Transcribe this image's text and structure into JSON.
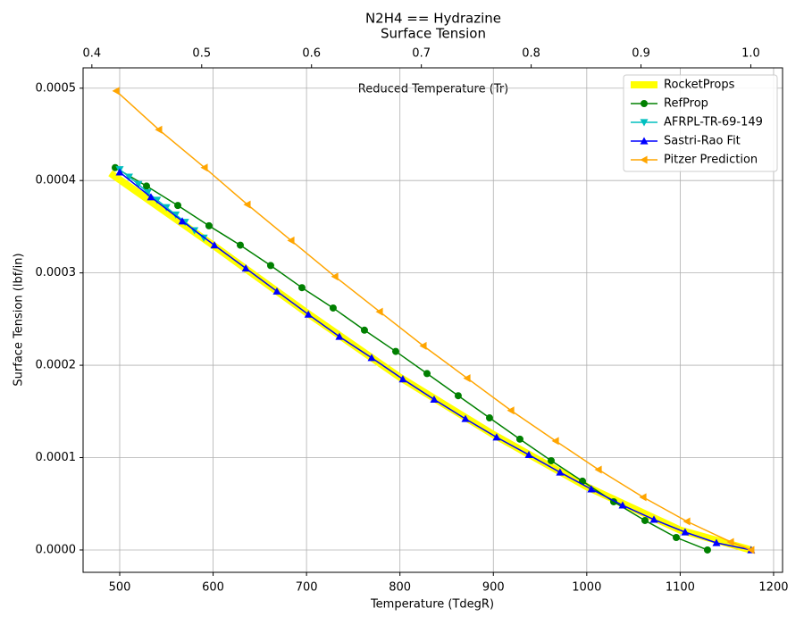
{
  "chart_data": {
    "type": "line",
    "title": "N2H4 == Hydrazine",
    "subtitle": "Surface Tension",
    "xlabel": "Temperature (TdegR)",
    "ylabel": "Surface Tension (lbf/in)",
    "x2label": "Reduced Temperature (Tr)",
    "xlim": [
      460.8,
      1209.6
    ],
    "xticks": [
      500,
      600,
      700,
      800,
      900,
      1000,
      1100,
      1200
    ],
    "x2lim": [
      0.392,
      1.0289
    ],
    "x2ticks": [
      0.4,
      0.5,
      0.6,
      0.7,
      0.8,
      0.9,
      {
        "value": 1,
        "label": "1.0"
      }
    ],
    "ylim": [
      -2.42e-05,
      0.000522
    ],
    "yticks": [
      {
        "value": 0,
        "label": "0.0000"
      },
      {
        "value": 0.0001,
        "label": "0.0001"
      },
      {
        "value": 0.0002,
        "label": "0.0002"
      },
      {
        "value": 0.0003,
        "label": "0.0003"
      },
      {
        "value": 0.0004,
        "label": "0.0004"
      },
      {
        "value": 0.0005,
        "label": "0.0005"
      }
    ],
    "grid": true,
    "legend": "upper right",
    "series": [
      {
        "name": "RocketProps",
        "color": "#ffff00",
        "linewidth": 8,
        "marker": "none",
        "x": [
          490,
          600,
          700,
          800,
          900,
          1000,
          1100,
          1176
        ],
        "values": [
          0.000408,
          0.00033,
          0.000257,
          0.000187,
          0.000125,
          6.85e-05,
          2.15e-05,
          0
        ]
      },
      {
        "name": "RefProp",
        "color": "#008000",
        "linewidth": 1.5,
        "marker": "circle",
        "x": [
          495.2,
          528.7,
          562.2,
          595.6,
          629.1,
          661.6,
          695.1,
          728.5,
          762.0,
          795.5,
          829,
          862.4,
          895.9,
          928.4,
          961.9,
          995.4,
          1028.8,
          1062.3,
          1095.8,
          1129.2
        ],
        "values": [
          0.000414,
          0.000394,
          0.000373,
          0.000351,
          0.00033,
          0.000308,
          0.000284,
          0.000262,
          0.000238,
          0.000215,
          0.000191,
          0.000167,
          0.000143,
          0.00012,
          9.67e-05,
          7.45e-05,
          5.22e-05,
          3.19e-05,
          1.35e-05,
          0
        ]
      },
      {
        "name": "AFRPL-TR-69-149",
        "color": "#00bfbf",
        "linewidth": 1.5,
        "marker": "triangle-down",
        "x": [
          500,
          510,
          520,
          530,
          540,
          550,
          560,
          570,
          580,
          590
        ],
        "values": [
          0.000412,
          0.000404,
          0.000396,
          0.000387,
          0.000379,
          0.000371,
          0.000363,
          0.000355,
          0.000346,
          0.000338
        ]
      },
      {
        "name": "Sastri-Rao Fit",
        "color": "#0000ff",
        "linewidth": 1.5,
        "marker": "triangle-up",
        "x": [
          500,
          533.5,
          567,
          601.4,
          635,
          668.3,
          702,
          735.2,
          769.7,
          803.1,
          836.6,
          870.1,
          903.5,
          938,
          971.4,
          1004.9,
          1038.4,
          1071.9,
          1105.3,
          1138.8,
          1176
        ],
        "values": [
          0.000409,
          0.000382,
          0.000356,
          0.00033,
          0.000305,
          0.00028,
          0.000255,
          0.000231,
          0.000208,
          0.000185,
          0.000163,
          0.000142,
          0.000122,
          0.000103,
          8.41e-05,
          6.58e-05,
          4.84e-05,
          3.29e-05,
          1.93e-05,
          7.7e-06,
          0
        ]
      },
      {
        "name": "Pitzer Prediction",
        "color": "#ffa500",
        "linewidth": 1.5,
        "marker": "triangle-left",
        "x": [
          496.2,
          542,
          590.8,
          636.7,
          683.6,
          730.5,
          778.3,
          825.1,
          872,
          918.9,
          966.7,
          1012.6,
          1060.4,
          1107.3,
          1154.1,
          1176
        ],
        "values": [
          0.000497,
          0.000455,
          0.000414,
          0.000374,
          0.000335,
          0.000296,
          0.000258,
          0.000221,
          0.000186,
          0.000151,
          0.000118,
          8.7e-05,
          5.71e-05,
          3.09e-05,
          8.7e-06,
          0
        ]
      }
    ]
  }
}
